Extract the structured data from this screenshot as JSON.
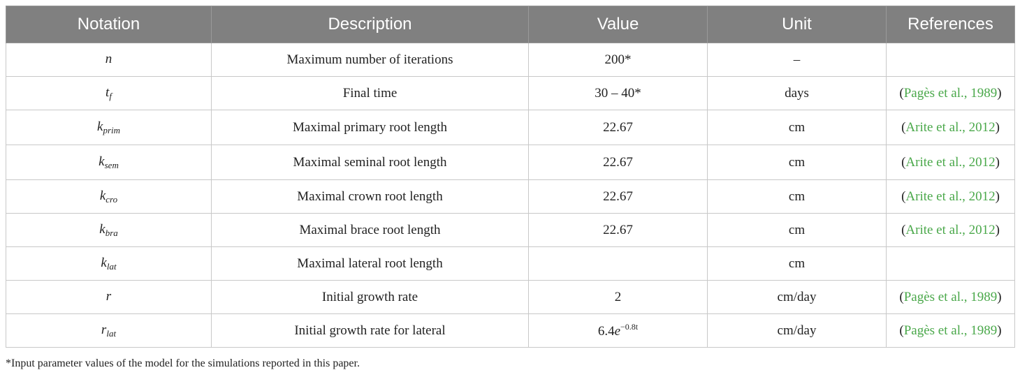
{
  "headers": [
    "Notation",
    "Description",
    "Value",
    "Unit",
    "References"
  ],
  "rows": [
    {
      "sym": "n",
      "sub": "",
      "desc": "Maximum number of iterations",
      "value": "200*",
      "unit": "–",
      "ref": ""
    },
    {
      "sym": "t",
      "sub": "f",
      "desc": "Final time",
      "value": "30 – 40*",
      "unit": "days",
      "ref": "Pagès et al., 1989"
    },
    {
      "sym": "k",
      "sub": "prim",
      "desc": "Maximal primary root length",
      "value": "22.67",
      "unit": "cm",
      "ref": "Arite et al., 2012"
    },
    {
      "sym": "k",
      "sub": "sem",
      "desc": "Maximal seminal root length",
      "value": "22.67",
      "unit": "cm",
      "ref": "Arite et al., 2012"
    },
    {
      "sym": "k",
      "sub": "cro",
      "desc": "Maximal crown root length",
      "value": "22.67",
      "unit": "cm",
      "ref": "Arite et al., 2012"
    },
    {
      "sym": "k",
      "sub": "bra",
      "desc": "Maximal brace root length",
      "value": "22.67",
      "unit": "cm",
      "ref": "Arite et al., 2012"
    },
    {
      "sym": "k",
      "sub": "lat",
      "desc": "Maximal lateral root length",
      "value": "",
      "unit": "cm",
      "ref": ""
    },
    {
      "sym": "r",
      "sub": "",
      "desc": "Initial growth rate",
      "value": "2",
      "unit": "cm/day",
      "ref": "Pagès et al., 1989"
    },
    {
      "sym": "r",
      "sub": "lat",
      "desc": "Initial growth rate for lateral",
      "value": "",
      "unit": "cm/day",
      "ref": "Pagès et al., 1989"
    }
  ],
  "last_value": {
    "coef": "6.4",
    "base": "e",
    "exp": "−0.8t"
  },
  "footnote": "*Input parameter values of the model for the simulations reported in this paper.",
  "colors": {
    "header_bg": "#808080",
    "link": "#4aa84a"
  }
}
